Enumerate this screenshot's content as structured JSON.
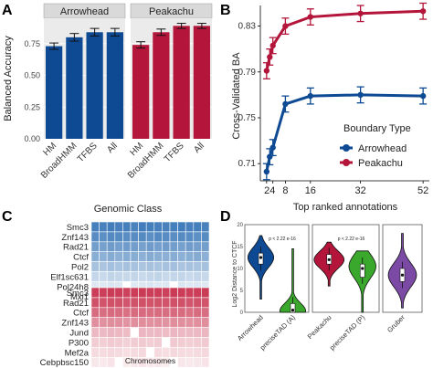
{
  "panels": {
    "a": "A",
    "b": "B",
    "c": "C",
    "d": "D"
  },
  "colors": {
    "arrowhead": "#0d4a93",
    "peakachu": "#b3163a",
    "heat_blue": "#3b78b8",
    "heat_red": "#c8334f",
    "strip": "#d9d9d9",
    "preciseTAD": "#3aa82c",
    "gruber": "#7b4aa5"
  },
  "chart_data": [
    {
      "type": "bar",
      "panel": "A",
      "ylabel": "Balanced Accuracy",
      "xlabel": "Genomic Class",
      "ylim": [
        0,
        0.95
      ],
      "yticks": [
        "0.00",
        "0.25",
        "0.50",
        "0.75"
      ],
      "facets": [
        {
          "name": "Arrowhead",
          "categories": [
            "HM",
            "BroadHMM",
            "TFBS",
            "All"
          ],
          "values": [
            0.73,
            0.8,
            0.84,
            0.84
          ],
          "errors": [
            0.025,
            0.03,
            0.03,
            0.03
          ]
        },
        {
          "name": "Peakachu",
          "categories": [
            "HM",
            "BroadHMM",
            "TFBS",
            "All"
          ],
          "values": [
            0.74,
            0.84,
            0.89,
            0.89
          ],
          "errors": [
            0.025,
            0.025,
            0.02,
            0.02
          ]
        }
      ]
    },
    {
      "type": "line",
      "panel": "B",
      "ylabel": "Cross-Validated BA",
      "xlabel": "Top ranked annotations",
      "xticks": [
        2,
        4,
        8,
        16,
        32,
        52
      ],
      "yticks": [
        "0.71",
        "0.75",
        "0.79",
        "0.83"
      ],
      "xlim": [
        0,
        54
      ],
      "ylim": [
        0.695,
        0.848
      ],
      "legend_title": "Boundary Type",
      "series": [
        {
          "name": "Arrowhead",
          "x": [
            2,
            3,
            4,
            8,
            16,
            32,
            52
          ],
          "y": [
            0.703,
            0.716,
            0.724,
            0.762,
            0.769,
            0.77,
            0.769
          ],
          "err": 0.007
        },
        {
          "name": "Peakachu",
          "x": [
            2,
            3,
            4,
            8,
            16,
            32,
            52
          ],
          "y": [
            0.791,
            0.803,
            0.813,
            0.83,
            0.838,
            0.841,
            0.843
          ],
          "err": 0.007
        }
      ]
    },
    {
      "type": "heatmap",
      "panel": "C",
      "xlabel": "Chromosomes",
      "columns": 15,
      "blocks": [
        {
          "name": "Arrowhead",
          "rows": [
            "Smc3",
            "Znf143",
            "Rad21",
            "Ctcf",
            "Pol2",
            "Elf1sc631",
            "Pol24h8",
            "Mxi1"
          ],
          "levels": [
            [
              0.95,
              0.93,
              0.96,
              0.94,
              0.95,
              0.92,
              0.96,
              0.95,
              0.94,
              0.93,
              0.95,
              0.96,
              0.94,
              0.95,
              0.93
            ],
            [
              0.85,
              0.83,
              0.87,
              0.86,
              0.84,
              0.85,
              0.86,
              0.83,
              0.87,
              0.85,
              0.84,
              0.86,
              0.85,
              0.83,
              0.86
            ],
            [
              0.72,
              0.7,
              0.74,
              0.71,
              0.73,
              0.72,
              0.7,
              0.74,
              0.71,
              0.73,
              0.72,
              0.7,
              0.73,
              0.71,
              0.72
            ],
            [
              0.6,
              0.58,
              0.62,
              0.59,
              0.61,
              0.6,
              0.58,
              0.62,
              0.6,
              0.59,
              0.61,
              0.58,
              0.6,
              0.62,
              0.59
            ],
            [
              0.45,
              0.43,
              0.47,
              0.44,
              0.46,
              0.45,
              0.43,
              0.46,
              0.44,
              0.45,
              0.47,
              0.43,
              0.45,
              0.44,
              0.46
            ],
            [
              0.3,
              0.28,
              0.32,
              0.3,
              0.29,
              0.31,
              0.28,
              0.3,
              0.32,
              0.29,
              0.3,
              0.31,
              0.28,
              0.3,
              0.29
            ],
            [
              0.18,
              0.17,
              0.19,
              0.18,
              0.0,
              0.17,
              0.18,
              0.19,
              0.17,
              0.18,
              0.0,
              0.19,
              0.17,
              0.18,
              0.17
            ],
            [
              0.1,
              0.0,
              0.11,
              0.1,
              0.09,
              0.0,
              0.1,
              0.11,
              0.09,
              0.1,
              0.0,
              0.11,
              0.09,
              0.0,
              0.1
            ]
          ]
        },
        {
          "name": "Peakachu",
          "rows": [
            "Smc3",
            "Rad21",
            "Ctcf",
            "Znf143",
            "Jund",
            "P300",
            "Mef2a",
            "Cebpbsc150"
          ],
          "levels": [
            [
              0.95,
              0.94,
              0.96,
              0.95,
              0.93,
              0.95,
              0.96,
              0.94,
              0.95,
              0.93,
              0.96,
              0.95,
              0.94,
              0.95,
              0.96
            ],
            [
              0.85,
              0.84,
              0.86,
              0.85,
              0.83,
              0.85,
              0.86,
              0.84,
              0.85,
              0.84,
              0.86,
              0.85,
              0.83,
              0.85,
              0.84
            ],
            [
              0.72,
              0.71,
              0.73,
              0.72,
              0.7,
              0.72,
              0.73,
              0.71,
              0.72,
              0.71,
              0.73,
              0.72,
              0.7,
              0.72,
              0.71
            ],
            [
              0.55,
              0.54,
              0.56,
              0.55,
              0.53,
              0.55,
              0.56,
              0.54,
              0.55,
              0.53,
              0.56,
              0.55,
              0.54,
              0.55,
              0.56
            ],
            [
              0.35,
              0.34,
              0.36,
              0.35,
              0.33,
              0.0,
              0.36,
              0.34,
              0.35,
              0.33,
              0.36,
              0.35,
              0.34,
              0.35,
              0.36
            ],
            [
              0.25,
              0.24,
              0.26,
              0.25,
              0.23,
              0.25,
              0.26,
              0.24,
              0.25,
              0.0,
              0.26,
              0.25,
              0.24,
              0.25,
              0.26
            ],
            [
              0.18,
              0.17,
              0.19,
              0.18,
              0.16,
              0.18,
              0.19,
              0.0,
              0.18,
              0.16,
              0.19,
              0.18,
              0.17,
              0.18,
              0.19
            ],
            [
              0.12,
              0.11,
              0.13,
              0.0,
              0.1,
              0.12,
              0.13,
              0.11,
              0.12,
              0.1,
              0.0,
              0.12,
              0.11,
              0.12,
              0.13
            ]
          ]
        }
      ]
    },
    {
      "type": "violin",
      "panel": "D",
      "ylabel": "Log2 Distance to CTCF",
      "ylim": [
        0,
        20
      ],
      "yticks": [
        0,
        5,
        10,
        15,
        20
      ],
      "groups": [
        {
          "name": "Arrowhead",
          "categories": [
            "Arrowhead",
            "preciseTAD (A)"
          ],
          "pvalue": "p < 2.22 e-16",
          "violins": [
            {
              "median": 12.5,
              "q1": 11.0,
              "q3": 13.5,
              "min": 3,
              "max": 17.5,
              "mode": 12.5,
              "width": 0.9
            },
            {
              "median": 0.5,
              "q1": 0.0,
              "q3": 2.0,
              "min": 0,
              "max": 14.5,
              "mode": 0.3,
              "width": 0.9
            }
          ]
        },
        {
          "name": "Peakachu",
          "categories": [
            "Peakachu",
            "preciseTAD (P)"
          ],
          "pvalue": "p < 2.22 e-16",
          "violins": [
            {
              "median": 12.0,
              "q1": 11.0,
              "q3": 13.2,
              "min": 6,
              "max": 16,
              "mode": 12.0,
              "width": 1.0
            },
            {
              "median": 10.0,
              "q1": 8.0,
              "q3": 11.0,
              "min": 0,
              "max": 14,
              "mode": 10.5,
              "width": 0.9
            }
          ]
        },
        {
          "name": "Gruber",
          "categories": [
            "Gruber"
          ],
          "pvalue": "",
          "violins": [
            {
              "median": 8.5,
              "q1": 7.0,
              "q3": 10.0,
              "min": 1,
              "max": 18,
              "mode": 8.5,
              "width": 0.8
            }
          ]
        }
      ]
    }
  ]
}
